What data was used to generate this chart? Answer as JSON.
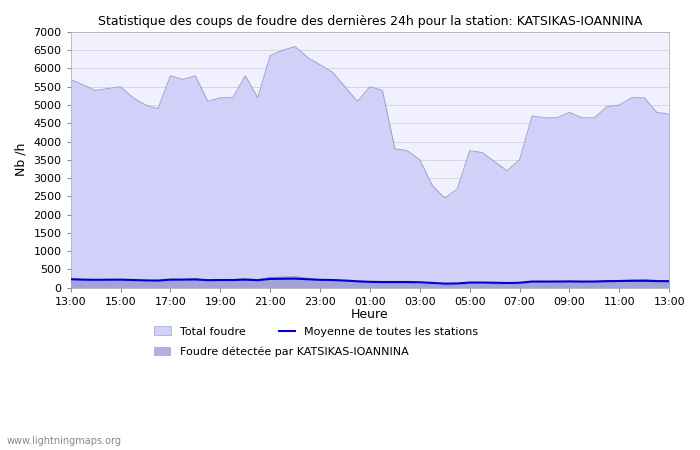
{
  "title": "Statistique des coups de foudre des dernières 24h pour la station: KATSIKAS-IOANNINA",
  "ylabel": "Nb /h",
  "xlabel": "Heure",
  "x_labels": [
    "13:00",
    "15:00",
    "17:00",
    "19:00",
    "21:00",
    "23:00",
    "01:00",
    "03:00",
    "05:00",
    "07:00",
    "09:00",
    "11:00",
    "13:00"
  ],
  "ylim": [
    0,
    7000
  ],
  "yticks": [
    0,
    500,
    1000,
    1500,
    2000,
    2500,
    3000,
    3500,
    4000,
    4500,
    5000,
    5500,
    6000,
    6500,
    7000
  ],
  "background_color": "#ffffff",
  "plot_bg_color": "#f0f0ff",
  "total_foudre_color": "#d0d0f8",
  "total_foudre_edge_color": "#a0a0d0",
  "station_color": "#9090d0",
  "moyenne_color": "#0000cc",
  "watermark": "www.lightningmaps.org",
  "x": [
    0,
    0.25,
    0.5,
    0.75,
    1.0,
    1.25,
    1.5,
    1.75,
    2.0,
    2.25,
    2.5,
    2.75,
    3.0,
    3.25,
    3.5,
    3.75,
    4.0,
    4.25,
    4.5,
    4.75,
    5.0,
    5.25,
    5.5,
    5.75,
    6.0,
    6.25,
    6.5,
    6.75,
    7.0,
    7.25,
    7.5,
    7.75,
    8.0,
    8.25,
    8.5,
    8.75,
    9.0,
    9.25,
    9.5,
    9.75,
    10.0,
    10.25,
    10.5,
    10.75,
    11.0,
    11.25,
    11.5,
    11.75,
    12.0
  ],
  "total_foudre_y": [
    5700,
    5550,
    5400,
    5450,
    5500,
    5200,
    5000,
    4900,
    5800,
    5700,
    5800,
    5100,
    5200,
    5200,
    5800,
    5200,
    6350,
    6500,
    6600,
    6300,
    6100,
    5900,
    5500,
    5100,
    5500,
    5400,
    3800,
    3750,
    3500,
    2800,
    2450,
    2700,
    3750,
    3700,
    3450,
    3200,
    3500,
    4700,
    4650,
    4650,
    4800,
    4650,
    4650,
    4950,
    5000,
    5200,
    5200,
    4800,
    4750
  ],
  "station_y": [
    250,
    220,
    210,
    220,
    230,
    210,
    200,
    190,
    230,
    230,
    250,
    210,
    220,
    220,
    250,
    220,
    280,
    290,
    300,
    260,
    220,
    210,
    180,
    150,
    130,
    120,
    120,
    120,
    100,
    80,
    60,
    70,
    100,
    100,
    90,
    80,
    90,
    150,
    150,
    160,
    170,
    160,
    170,
    190,
    200,
    210,
    220,
    200,
    190
  ],
  "moyenne_y": [
    230,
    220,
    215,
    218,
    220,
    210,
    200,
    195,
    220,
    220,
    225,
    205,
    210,
    210,
    220,
    205,
    240,
    245,
    248,
    230,
    215,
    210,
    195,
    175,
    160,
    155,
    155,
    155,
    148,
    130,
    110,
    115,
    140,
    140,
    135,
    128,
    135,
    168,
    167,
    168,
    172,
    167,
    168,
    178,
    182,
    188,
    190,
    180,
    178
  ]
}
